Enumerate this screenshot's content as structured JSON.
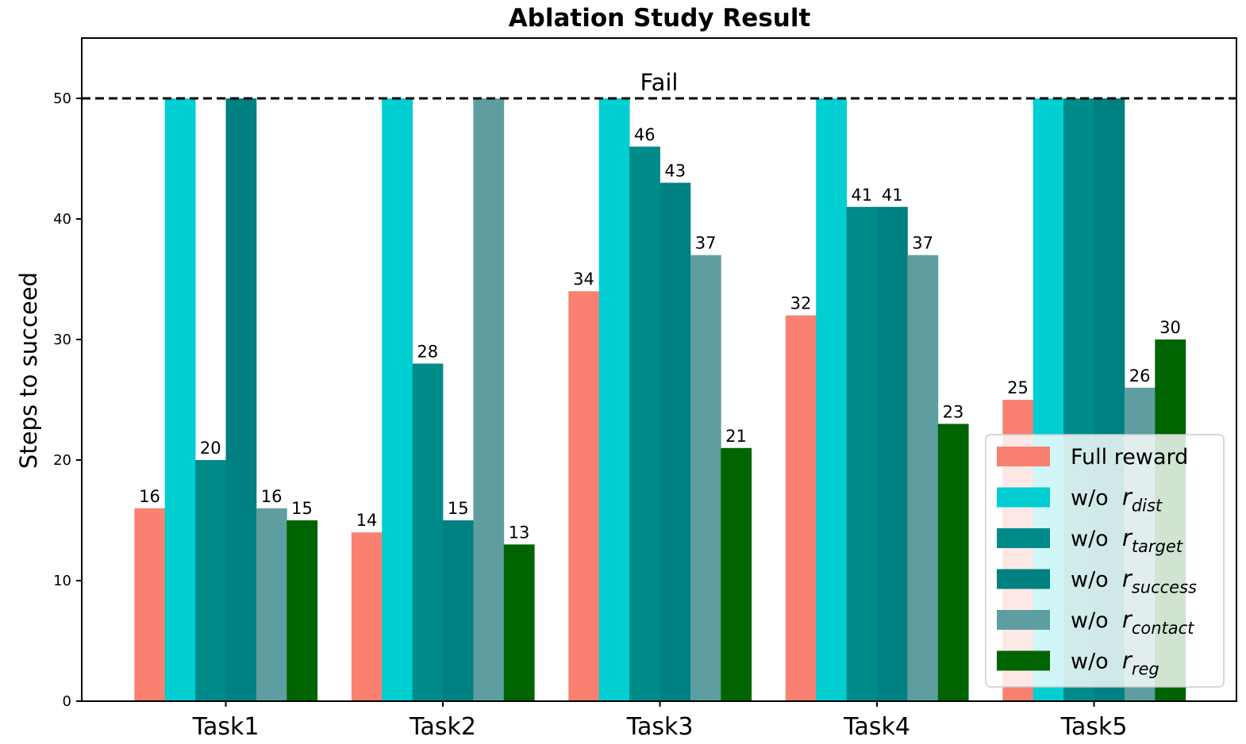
{
  "chart_data": {
    "type": "bar",
    "title": "Ablation Study Result",
    "xlabel": "",
    "ylabel": "Steps to succeed",
    "ylim": [
      0,
      55
    ],
    "yticks": [
      0,
      10,
      20,
      30,
      40,
      50
    ],
    "grid": false,
    "legend_position": "lower-right",
    "categories": [
      "Task1",
      "Task2",
      "Task3",
      "Task4",
      "Task5"
    ],
    "threshold": {
      "value": 50,
      "label": "Fail",
      "style": "dashed"
    },
    "series": [
      {
        "name": "Full reward",
        "prefix": "",
        "var": "",
        "sub": "",
        "color": "#fa8072",
        "values": [
          16,
          14,
          34,
          32,
          25
        ],
        "labeled": [
          true,
          true,
          true,
          true,
          true
        ]
      },
      {
        "name": "w/o r_dist",
        "prefix": "w/o",
        "var": "r",
        "sub": "dist",
        "color": "#00ced1",
        "values": [
          50,
          50,
          50,
          50,
          50
        ],
        "labeled": [
          false,
          false,
          false,
          false,
          false
        ]
      },
      {
        "name": "w/o r_target",
        "prefix": "w/o",
        "var": "r",
        "sub": "target",
        "color": "#008b8b",
        "values": [
          20,
          28,
          46,
          41,
          50
        ],
        "labeled": [
          true,
          true,
          true,
          true,
          false
        ]
      },
      {
        "name": "w/o r_success",
        "prefix": "w/o",
        "var": "r",
        "sub": "success",
        "color": "#008080",
        "values": [
          50,
          15,
          43,
          41,
          50
        ],
        "labeled": [
          false,
          true,
          true,
          true,
          false
        ]
      },
      {
        "name": "w/o r_contact",
        "prefix": "w/o",
        "var": "r",
        "sub": "contact",
        "color": "#5f9ea0",
        "values": [
          16,
          50,
          37,
          37,
          26
        ],
        "labeled": [
          true,
          false,
          true,
          true,
          true
        ]
      },
      {
        "name": "w/o r_reg",
        "prefix": "w/o",
        "var": "r",
        "sub": "reg",
        "color": "#006400",
        "values": [
          15,
          13,
          21,
          23,
          30
        ],
        "labeled": [
          true,
          true,
          true,
          true,
          true
        ]
      }
    ]
  }
}
